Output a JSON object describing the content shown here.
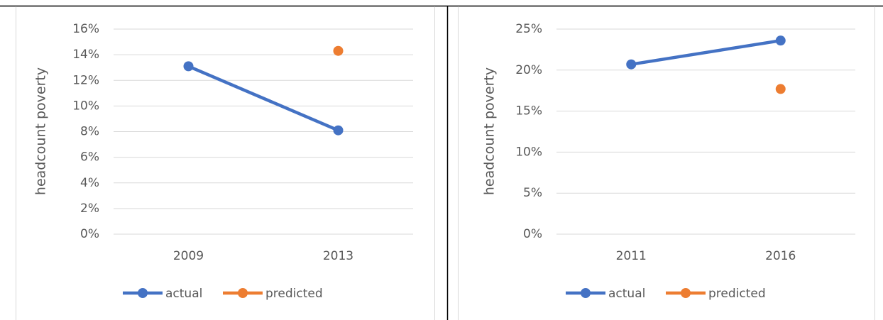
{
  "chart_data": [
    {
      "type": "line",
      "y_label": "headcount poverty",
      "categories": [
        "2009",
        "2013"
      ],
      "series": [
        {
          "name": "actual",
          "color": "#4472c4",
          "values": [
            13.1,
            8.1
          ]
        },
        {
          "name": "predicted",
          "color": "#ed7d31",
          "values": [
            null,
            14.3
          ]
        }
      ],
      "ylim": [
        0,
        16
      ],
      "yticks": [
        {
          "value": 0,
          "label": "0%"
        },
        {
          "value": 2,
          "label": "2%"
        },
        {
          "value": 4,
          "label": "4%"
        },
        {
          "value": 6,
          "label": "6%"
        },
        {
          "value": 8,
          "label": "8%"
        },
        {
          "value": 10,
          "label": "10%"
        },
        {
          "value": 12,
          "label": "12%"
        },
        {
          "value": 14,
          "label": "14%"
        },
        {
          "value": 16,
          "label": "16%"
        }
      ],
      "grid": true,
      "legend": "bottom"
    },
    {
      "type": "line",
      "y_label": "headcount poverty",
      "categories": [
        "2011",
        "2016"
      ],
      "series": [
        {
          "name": "actual",
          "color": "#4472c4",
          "values": [
            20.7,
            23.6
          ]
        },
        {
          "name": "predicted",
          "color": "#ed7d31",
          "values": [
            null,
            17.7
          ]
        }
      ],
      "ylim": [
        0,
        25
      ],
      "yticks": [
        {
          "value": 0,
          "label": "0%"
        },
        {
          "value": 5,
          "label": "5%"
        },
        {
          "value": 10,
          "label": "10%"
        },
        {
          "value": 15,
          "label": "15%"
        },
        {
          "value": 20,
          "label": "20%"
        },
        {
          "value": 25,
          "label": "25%"
        }
      ],
      "grid": true,
      "legend": "bottom"
    }
  ]
}
